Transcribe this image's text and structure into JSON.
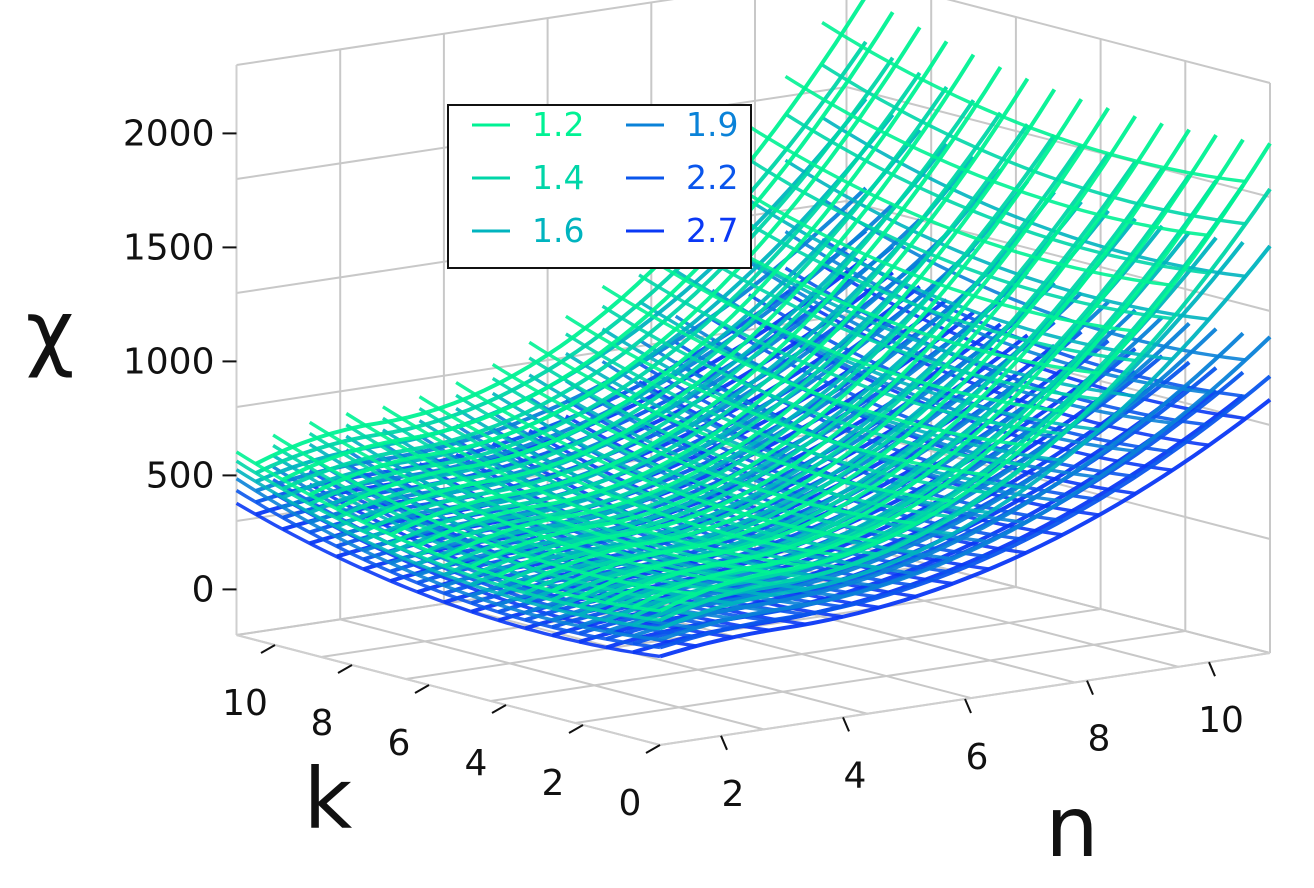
{
  "chart_data": {
    "type": "surface-3d-lines",
    "zlabel": "χ",
    "xlabel": "n",
    "ylabel": "k",
    "n_ticks": [
      "2",
      "4",
      "6",
      "8",
      "10"
    ],
    "k_ticks": [
      "10",
      "8",
      "6",
      "4",
      "2",
      "0"
    ],
    "z_ticks": [
      "0",
      "500",
      "1000",
      "1500",
      "2000"
    ],
    "n_range": [
      1,
      11
    ],
    "k_range": [
      0,
      11
    ],
    "z_range": [
      -200,
      2300
    ],
    "legend_placement": "upper-center",
    "grid": true,
    "series": [
      {
        "name": "1.2",
        "color": "#00f294",
        "z_at_corner_n_max_k_min": 2000,
        "z_min": 450,
        "z_at_k_max_n_min": 700
      },
      {
        "name": "1.4",
        "color": "#00d6a8",
        "z_at_corner_n_max_k_min": 1800,
        "z_min": 400,
        "z_at_k_max_n_min": 650
      },
      {
        "name": "1.6",
        "color": "#00b4bf",
        "z_at_corner_n_max_k_min": 1550,
        "z_min": 350,
        "z_at_k_max_n_min": 600
      },
      {
        "name": "1.9",
        "color": "#0a82d8",
        "z_at_corner_n_max_k_min": 1150,
        "z_min": 280,
        "z_at_k_max_n_min": 540
      },
      {
        "name": "2.2",
        "color": "#0a56ec",
        "z_at_corner_n_max_k_min": 980,
        "z_min": 240,
        "z_at_k_max_n_min": 480
      },
      {
        "name": "2.7",
        "color": "#0a38f5",
        "z_at_corner_n_max_k_min": 880,
        "z_min": 200,
        "z_at_k_max_n_min": 420
      }
    ]
  }
}
